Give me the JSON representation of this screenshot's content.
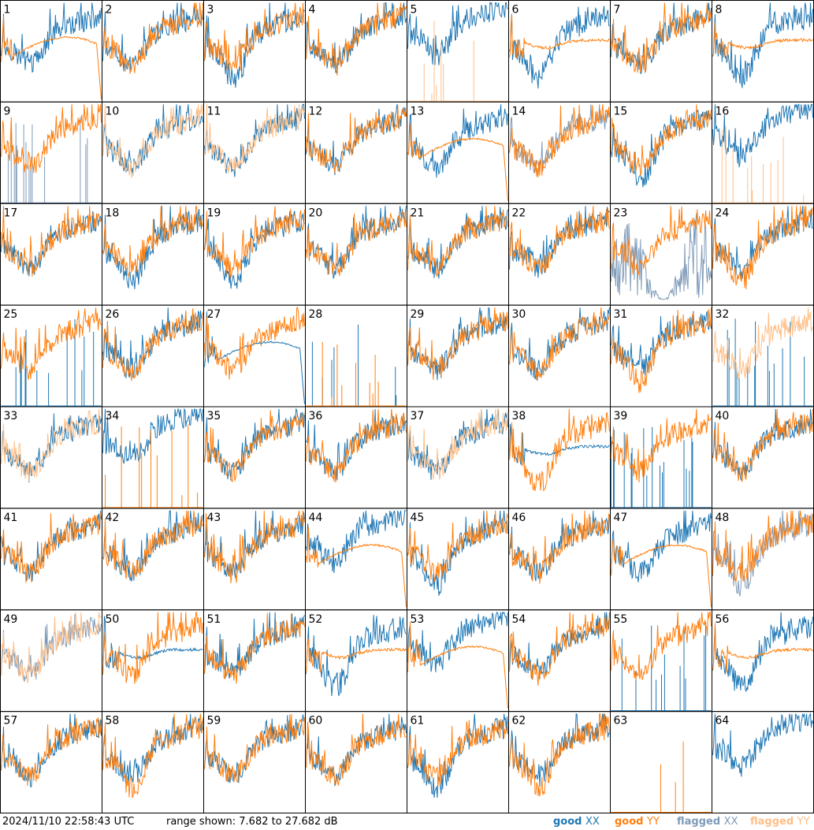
{
  "colors": {
    "good_xx": "#1f77b4",
    "good_yy": "#ff7f0e",
    "flagged_xx": "#7f9bb8",
    "flagged_yy": "#ffbf87",
    "border": "#000000"
  },
  "footer": {
    "timestamp": "2024/11/10 22:58:43 UTC",
    "range": "range shown: 7.682 to 27.682 dB",
    "legend": [
      {
        "label": "good ",
        "sub": "XX",
        "color": "#1f77b4"
      },
      {
        "label": "good ",
        "sub": "YY",
        "color": "#ff7f0e"
      },
      {
        "label": "flagged ",
        "sub": "XX",
        "color": "#7f9bb8"
      },
      {
        "label": "flagged ",
        "sub": "YY",
        "color": "#ffbf87"
      }
    ]
  },
  "chart_data": {
    "type": "line",
    "layout": "8x8 small multiples",
    "ylim": [
      7.682,
      27.682
    ],
    "yunit": "dB",
    "panels": [
      {
        "id": "1",
        "xx": "good",
        "yy": "good",
        "yy_shape": "bowl_drop",
        "xx_shape": "normal"
      },
      {
        "id": "2",
        "xx": "good",
        "yy": "good",
        "yy_shape": "normal",
        "xx_shape": "normal"
      },
      {
        "id": "3",
        "xx": "good",
        "yy": "good",
        "yy_shape": "normal",
        "xx_shape": "deep"
      },
      {
        "id": "4",
        "xx": "good",
        "yy": "good",
        "yy_shape": "normal",
        "xx_shape": "normal"
      },
      {
        "id": "5",
        "xx": "good",
        "yy": "flagged",
        "yy_shape": "spikes_sparse",
        "xx_shape": "high"
      },
      {
        "id": "6",
        "xx": "good",
        "yy": "good",
        "yy_shape": "flat_high",
        "xx_shape": "deep"
      },
      {
        "id": "7",
        "xx": "good",
        "yy": "good",
        "yy_shape": "normal",
        "xx_shape": "normal"
      },
      {
        "id": "8",
        "xx": "good",
        "yy": "good",
        "yy_shape": "flat_high",
        "xx_shape": "deep"
      },
      {
        "id": "9",
        "xx": "flagged",
        "yy": "good",
        "yy_shape": "normal",
        "xx_shape": "spikes"
      },
      {
        "id": "10",
        "xx": "good",
        "yy": "flagged",
        "yy_shape": "normal",
        "xx_shape": "normal"
      },
      {
        "id": "11",
        "xx": "good",
        "yy": "flagged",
        "yy_shape": "normal",
        "xx_shape": "normal"
      },
      {
        "id": "12",
        "xx": "good",
        "yy": "good",
        "yy_shape": "normal",
        "xx_shape": "normal"
      },
      {
        "id": "13",
        "xx": "good",
        "yy": "good",
        "yy_shape": "bowl_drop",
        "xx_shape": "normal"
      },
      {
        "id": "14",
        "xx": "flagged",
        "yy": "good",
        "yy_shape": "normal",
        "xx_shape": "normal"
      },
      {
        "id": "15",
        "xx": "good",
        "yy": "good",
        "yy_shape": "normal",
        "xx_shape": "deep"
      },
      {
        "id": "16",
        "xx": "good",
        "yy": "flagged",
        "yy_shape": "spikes_sparse",
        "xx_shape": "high"
      },
      {
        "id": "17",
        "xx": "good",
        "yy": "good",
        "yy_shape": "normal",
        "xx_shape": "normal"
      },
      {
        "id": "18",
        "xx": "good",
        "yy": "good",
        "yy_shape": "normal",
        "xx_shape": "deep"
      },
      {
        "id": "19",
        "xx": "good",
        "yy": "good",
        "yy_shape": "normal",
        "xx_shape": "deep"
      },
      {
        "id": "20",
        "xx": "good",
        "yy": "good",
        "yy_shape": "normal",
        "xx_shape": "normal"
      },
      {
        "id": "21",
        "xx": "good",
        "yy": "good",
        "yy_shape": "normal",
        "xx_shape": "normal"
      },
      {
        "id": "22",
        "xx": "good",
        "yy": "good",
        "yy_shape": "normal",
        "xx_shape": "normal"
      },
      {
        "id": "23",
        "xx": "flagged",
        "yy": "good",
        "yy_shape": "normal",
        "xx_shape": "noisy_low"
      },
      {
        "id": "24",
        "xx": "good",
        "yy": "good",
        "yy_shape": "deep",
        "xx_shape": "normal"
      },
      {
        "id": "25",
        "xx": "good",
        "yy": "good",
        "yy_shape": "normal",
        "xx_shape": "spikes"
      },
      {
        "id": "26",
        "xx": "good",
        "yy": "good",
        "yy_shape": "normal",
        "xx_shape": "normal"
      },
      {
        "id": "27",
        "xx": "good",
        "yy": "good",
        "yy_shape": "normal",
        "xx_shape": "bowl_drop"
      },
      {
        "id": "28",
        "xx": "good",
        "yy": "good",
        "yy_shape": "spikes_sparse",
        "xx_shape": "spikes_sparse"
      },
      {
        "id": "29",
        "xx": "good",
        "yy": "good",
        "yy_shape": "normal",
        "xx_shape": "normal"
      },
      {
        "id": "30",
        "xx": "good",
        "yy": "good",
        "yy_shape": "normal",
        "xx_shape": "normal"
      },
      {
        "id": "31",
        "xx": "good",
        "yy": "good",
        "yy_shape": "deep",
        "xx_shape": "normal"
      },
      {
        "id": "32",
        "xx": "good",
        "yy": "flagged",
        "yy_shape": "normal",
        "xx_shape": "spikes"
      },
      {
        "id": "33",
        "xx": "good",
        "yy": "flagged",
        "yy_shape": "normal",
        "xx_shape": "normal"
      },
      {
        "id": "34",
        "xx": "good",
        "yy": "good",
        "yy_shape": "spikes_sparse",
        "xx_shape": "high"
      },
      {
        "id": "35",
        "xx": "good",
        "yy": "good",
        "yy_shape": "normal",
        "xx_shape": "normal"
      },
      {
        "id": "36",
        "xx": "good",
        "yy": "good",
        "yy_shape": "normal",
        "xx_shape": "normal"
      },
      {
        "id": "37",
        "xx": "good",
        "yy": "flagged",
        "yy_shape": "normal",
        "xx_shape": "normal"
      },
      {
        "id": "38",
        "xx": "good",
        "yy": "good",
        "yy_shape": "deep",
        "xx_shape": "flat_high"
      },
      {
        "id": "39",
        "xx": "good",
        "yy": "good",
        "yy_shape": "normal",
        "xx_shape": "spikes"
      },
      {
        "id": "40",
        "xx": "good",
        "yy": "good",
        "yy_shape": "normal",
        "xx_shape": "normal"
      },
      {
        "id": "41",
        "xx": "good",
        "yy": "good",
        "yy_shape": "normal",
        "xx_shape": "normal"
      },
      {
        "id": "42",
        "xx": "good",
        "yy": "good",
        "yy_shape": "normal",
        "xx_shape": "normal"
      },
      {
        "id": "43",
        "xx": "good",
        "yy": "good",
        "yy_shape": "normal",
        "xx_shape": "normal"
      },
      {
        "id": "44",
        "xx": "good",
        "yy": "good",
        "yy_shape": "bowl_drop",
        "xx_shape": "high"
      },
      {
        "id": "45",
        "xx": "good",
        "yy": "good",
        "yy_shape": "normal",
        "xx_shape": "deep"
      },
      {
        "id": "46",
        "xx": "good",
        "yy": "good",
        "yy_shape": "normal",
        "xx_shape": "normal"
      },
      {
        "id": "47",
        "xx": "good",
        "yy": "good",
        "yy_shape": "bowl_drop",
        "xx_shape": "normal"
      },
      {
        "id": "48",
        "xx": "flagged",
        "yy": "good",
        "yy_shape": "normal",
        "xx_shape": "deep"
      },
      {
        "id": "49",
        "xx": "flagged",
        "yy": "flagged",
        "yy_shape": "normal",
        "xx_shape": "normal"
      },
      {
        "id": "50",
        "xx": "good",
        "yy": "good",
        "yy_shape": "normal",
        "xx_shape": "flat_high"
      },
      {
        "id": "51",
        "xx": "good",
        "yy": "good",
        "yy_shape": "normal",
        "xx_shape": "normal"
      },
      {
        "id": "52",
        "xx": "good",
        "yy": "good",
        "yy_shape": "flat_high",
        "xx_shape": "deep"
      },
      {
        "id": "53",
        "xx": "good",
        "yy": "good",
        "yy_shape": "bowl_drop",
        "xx_shape": "high"
      },
      {
        "id": "54",
        "xx": "good",
        "yy": "good",
        "yy_shape": "normal",
        "xx_shape": "normal"
      },
      {
        "id": "55",
        "xx": "good",
        "yy": "good",
        "yy_shape": "normal",
        "xx_shape": "spikes"
      },
      {
        "id": "56",
        "xx": "good",
        "yy": "good",
        "yy_shape": "flat_high",
        "xx_shape": "deep"
      },
      {
        "id": "57",
        "xx": "good",
        "yy": "good",
        "yy_shape": "normal",
        "xx_shape": "normal"
      },
      {
        "id": "58",
        "xx": "good",
        "yy": "good",
        "yy_shape": "deep",
        "xx_shape": "normal"
      },
      {
        "id": "59",
        "xx": "good",
        "yy": "good",
        "yy_shape": "normal",
        "xx_shape": "normal"
      },
      {
        "id": "60",
        "xx": "good",
        "yy": "good",
        "yy_shape": "normal",
        "xx_shape": "normal"
      },
      {
        "id": "61",
        "xx": "good",
        "yy": "good",
        "yy_shape": "normal",
        "xx_shape": "deep"
      },
      {
        "id": "62",
        "xx": "good",
        "yy": "good",
        "yy_shape": "deep",
        "xx_shape": "normal"
      },
      {
        "id": "63",
        "xx": "good",
        "yy": "good",
        "yy_shape": "spikes_sparse",
        "xx_shape": "none"
      },
      {
        "id": "64",
        "xx": "good",
        "yy": "good",
        "yy_shape": "none",
        "xx_shape": "high"
      }
    ]
  }
}
